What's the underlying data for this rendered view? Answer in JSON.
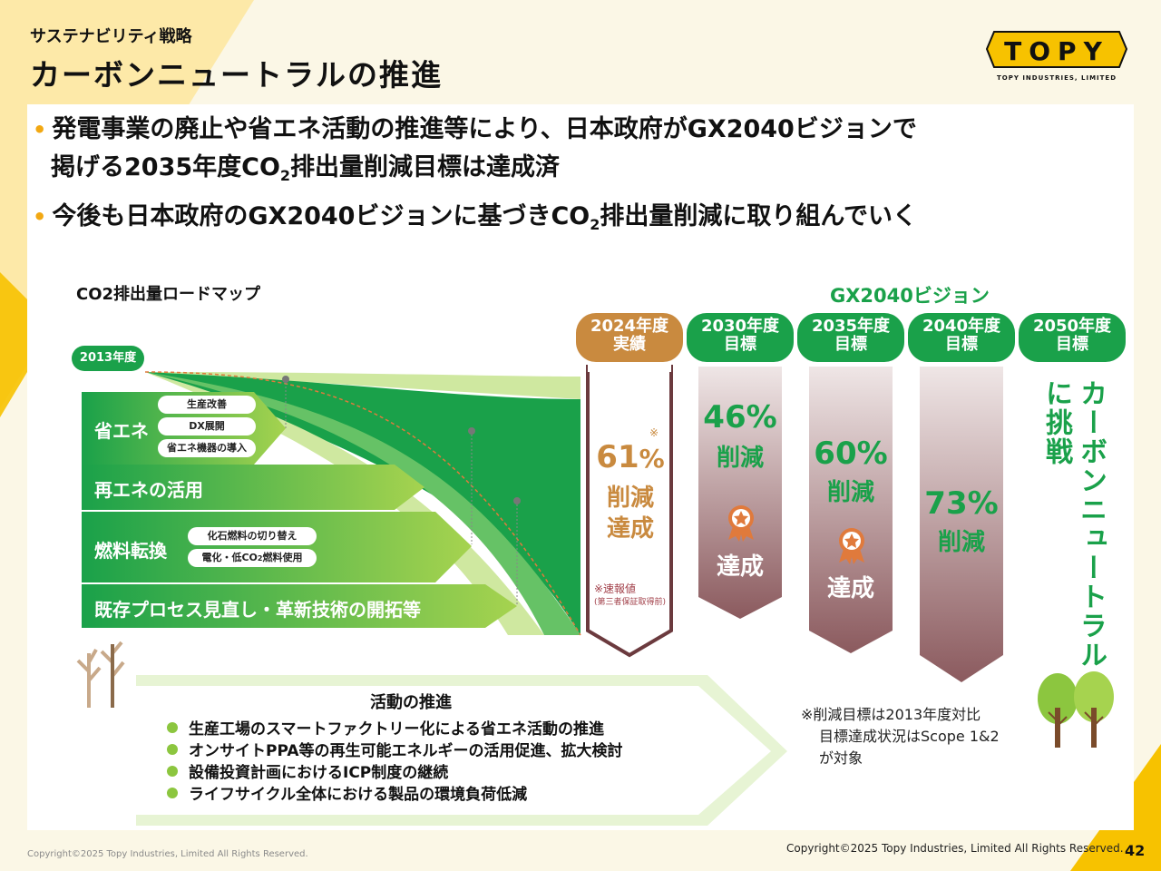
{
  "header": {
    "section_label": "サステナビリティ戦略",
    "page_title": "カーボンニュートラルの推進"
  },
  "logo": {
    "wordmark": "TOPY",
    "tagline": "TOPY INDUSTRIES, LIMITED"
  },
  "bullets": [
    {
      "line1": "発電事業の廃止や省エネ活動の推進等により、日本政府がGX2040ビジョンで",
      "line2_pre": "掲げる2035年度CO",
      "line2_sub": "2",
      "line2_post": "排出量削減目標は達成済"
    },
    {
      "pre": "今後も日本政府のGX2040ビジョンに基づきCO",
      "sub": "2",
      "post": "排出量削減に取り組んでいく"
    }
  ],
  "roadmap": {
    "title": "CO2排出量ロードマップ",
    "start_tag": "2013年度",
    "gx_label": "GX2040ビジョン",
    "arrows": [
      {
        "label": "省エネ",
        "subitems": [
          "生産改善",
          "DX展開",
          "省エネ機器の導入"
        ]
      },
      {
        "label": "再エネの活用",
        "subitems": []
      },
      {
        "label": "燃料転換",
        "subitems": [
          "化石燃料の切り替え"
        ],
        "sub2_pre": "電化・低CO",
        "sub2_sub": "2",
        "sub2_post": "燃料使用"
      },
      {
        "label": "既存プロセス見直し・革新技術の開拓等",
        "subitems": []
      }
    ],
    "columns": [
      {
        "year": "2024年度",
        "kind": "実績",
        "pct": "61",
        "unit": "%",
        "mark": "※",
        "line1": "削減",
        "line2": "達成",
        "note1": "※速報値",
        "note2": "(第三者保証取得前)",
        "color": "#c98a3f"
      },
      {
        "year": "2030年度",
        "kind": "目標",
        "pct": "46%",
        "line1": "削減",
        "badge": "達成",
        "color": "#1aa14a"
      },
      {
        "year": "2035年度",
        "kind": "目標",
        "pct": "60%",
        "line1": "削減",
        "badge": "達成",
        "color": "#1aa14a"
      },
      {
        "year": "2040年度",
        "kind": "目標",
        "pct": "73%",
        "line1": "削減",
        "color": "#1aa14a"
      },
      {
        "year": "2050年度",
        "kind": "目標",
        "vertical1": "カーボンニュートラル",
        "vertical2": "に挑戦",
        "color": "#1aa14a"
      }
    ]
  },
  "activities": {
    "title": "活動の推進",
    "items": [
      "生産工場のスマートファクトリー化による省エネ活動の推進",
      "オンサイトPPA等の再生可能エネルギーの活用促進、拡大検討",
      "設備投資計画におけるICP制度の継続",
      "ライフサイクル全体における製品の環境負荷低減"
    ]
  },
  "footnote": {
    "line1": "※削減目標は2013年度対比",
    "line2": "目標達成状況はScope 1&2",
    "line3": "が対象"
  },
  "footer": {
    "copyright_left": "Copyright©2025 Topy Industries, Limited All Rights Reserved.",
    "copyright_right": "Copyright©2025 Topy Industries, Limited All Rights Reserved.",
    "page_number": "42"
  },
  "colors": {
    "brand_yellow": "#f7c200",
    "green": "#1aa14a",
    "light_green": "#8cc63f",
    "orange": "#c98a3f",
    "maroon": "#8b5a5e"
  }
}
